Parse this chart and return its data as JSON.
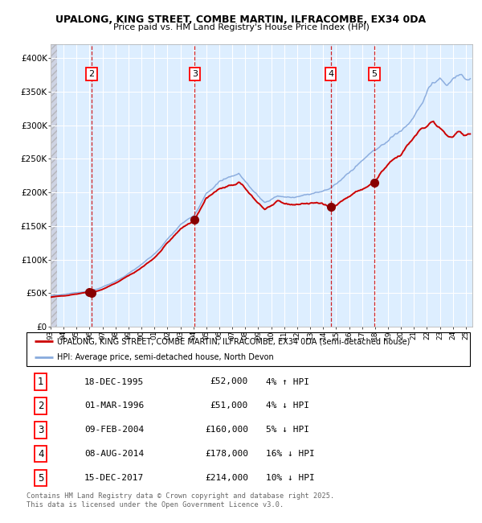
{
  "title1": "UPALONG, KING STREET, COMBE MARTIN, ILFRACOMBE, EX34 0DA",
  "title2": "Price paid vs. HM Land Registry's House Price Index (HPI)",
  "legend_line1": "UPALONG, KING STREET, COMBE MARTIN, ILFRACOMBE, EX34 0DA (semi-detached house)",
  "legend_line2": "HPI: Average price, semi-detached house, North Devon",
  "transactions": [
    {
      "num": 1,
      "date": "18-DEC-1995",
      "price": 52000,
      "pct": "4%",
      "dir": "↑"
    },
    {
      "num": 2,
      "date": "01-MAR-1996",
      "price": 51000,
      "pct": "4%",
      "dir": "↓"
    },
    {
      "num": 3,
      "date": "09-FEB-2004",
      "price": 160000,
      "pct": "5%",
      "dir": "↓"
    },
    {
      "num": 4,
      "date": "08-AUG-2014",
      "price": 178000,
      "pct": "16%",
      "dir": "↓"
    },
    {
      "num": 5,
      "date": "15-DEC-2017",
      "price": 214000,
      "pct": "10%",
      "dir": "↓"
    }
  ],
  "transaction_dates_decimal": [
    1995.96,
    1996.16,
    2004.1,
    2014.59,
    2017.95
  ],
  "transaction_prices": [
    52000,
    51000,
    160000,
    178000,
    214000
  ],
  "vline_dates_decimal": [
    1996.16,
    2004.1,
    2014.59,
    2017.95
  ],
  "red_line_color": "#cc0000",
  "hpi_color": "#88aadd",
  "dot_color": "#880000",
  "vline_color": "#cc0000",
  "background_color": "#ddeeff",
  "grid_color": "#ffffff",
  "ylim": [
    0,
    420000
  ],
  "ylabel_ticks": [
    0,
    50000,
    100000,
    150000,
    200000,
    250000,
    300000,
    350000,
    400000
  ],
  "footer": "Contains HM Land Registry data © Crown copyright and database right 2025.\nThis data is licensed under the Open Government Licence v3.0.",
  "xstart": 1993.0,
  "xend": 2025.5
}
